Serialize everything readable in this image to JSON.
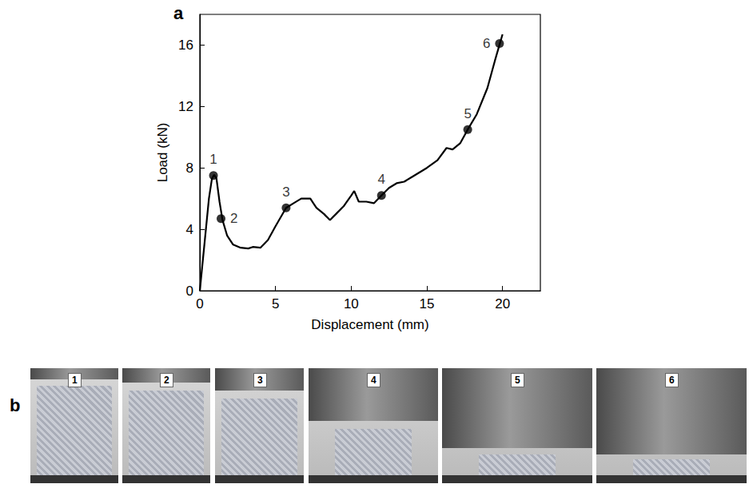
{
  "chart_data": {
    "type": "line",
    "title": "a",
    "xlabel": "Displacement (mm)",
    "ylabel": "Load (kN)",
    "x": [
      0,
      0.3,
      0.6,
      0.8,
      0.95,
      1.1,
      1.3,
      1.5,
      1.8,
      2.2,
      2.7,
      3.2,
      3.5,
      4,
      4.5,
      5,
      5.7,
      6.2,
      6.7,
      7.3,
      7.7,
      8.2,
      8.6,
      9.0,
      9.5,
      10.0,
      10.2,
      10.5,
      11,
      11.5,
      12,
      12.5,
      13,
      13.5,
      14,
      15,
      15.7,
      16.3,
      16.7,
      17.2,
      17.7,
      18.3,
      19,
      19.5,
      20
    ],
    "values": [
      0,
      3,
      6,
      7.3,
      7.55,
      7.3,
      5.8,
      4.6,
      3.6,
      3.0,
      2.8,
      2.75,
      2.85,
      2.8,
      3.3,
      4.2,
      5.4,
      5.7,
      6.0,
      6.0,
      5.4,
      5.0,
      4.6,
      5.0,
      5.5,
      6.2,
      6.5,
      5.8,
      5.8,
      5.7,
      6.2,
      6.7,
      7.0,
      7.1,
      7.4,
      8.0,
      8.5,
      9.3,
      9.2,
      9.6,
      10.5,
      11.5,
      13.2,
      15,
      16.7
    ],
    "color": "#000000",
    "xlim": [
      0,
      22.5
    ],
    "ylim": [
      0,
      18
    ],
    "xticks": [
      0,
      5,
      10,
      15,
      20
    ],
    "yticks": [
      0,
      4,
      8,
      12,
      16
    ],
    "grid": false,
    "annotations": [
      {
        "x": 0.9,
        "y": 7.5,
        "label": "1"
      },
      {
        "x": 1.4,
        "y": 4.7,
        "label": "2"
      },
      {
        "x": 5.7,
        "y": 5.4,
        "label": "3"
      },
      {
        "x": 12,
        "y": 6.2,
        "label": "4"
      },
      {
        "x": 17.7,
        "y": 10.5,
        "label": "5"
      },
      {
        "x": 19.8,
        "y": 16.1,
        "label": "6"
      }
    ]
  },
  "photos": {
    "panel": "b",
    "labels": [
      "1",
      "2",
      "3",
      "4",
      "5",
      "6"
    ]
  }
}
